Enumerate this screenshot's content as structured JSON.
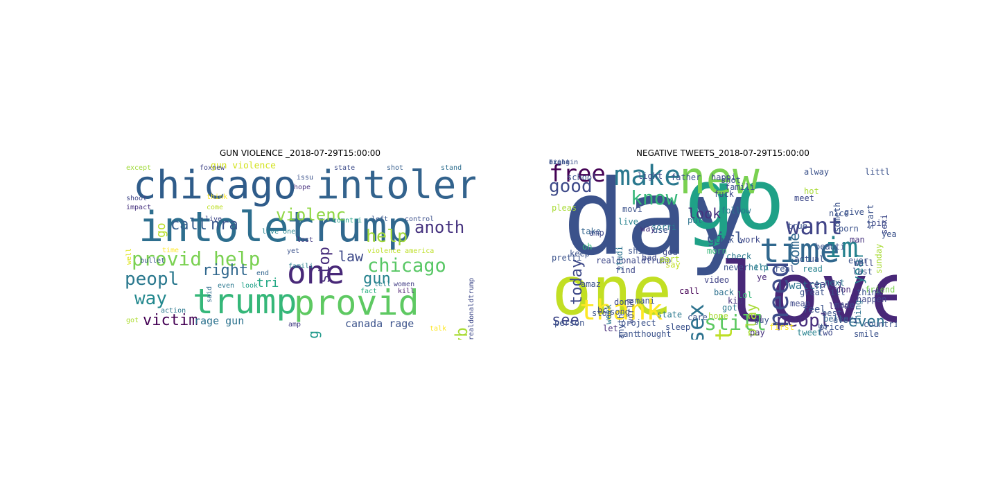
{
  "figure": {
    "left": {
      "title": "GUN VIOLENCE _2018-07-29T15:00:00",
      "words": [
        {
          "text": "chicago",
          "color": "#2f5c8a"
        },
        {
          "text": "intoler",
          "color": "#33638d"
        },
        {
          "text": "intoler",
          "color": "#2d6e8e"
        },
        {
          "text": "trump",
          "color": "#31688e"
        },
        {
          "text": "trump",
          "color": "#35b779"
        },
        {
          "text": "provid",
          "color": "#5ec962"
        },
        {
          "text": "one",
          "color": "#482878"
        },
        {
          "text": "provid help",
          "color": "#7ad151"
        },
        {
          "text": "violenc",
          "color": "#8fd744"
        },
        {
          "text": "help",
          "color": "#a2da37"
        },
        {
          "text": "anoth",
          "color": "#46337f"
        },
        {
          "text": "chicago",
          "color": "#58c765"
        },
        {
          "text": "peopl",
          "color": "#2a788e"
        },
        {
          "text": "way",
          "color": "#23888e"
        },
        {
          "text": "victim",
          "color": "#440154"
        },
        {
          "text": "right",
          "color": "#31688e"
        },
        {
          "text": "call",
          "color": "#355f8d"
        },
        {
          "text": "nra",
          "color": "#39558c"
        },
        {
          "text": "go",
          "color": "#b8de29"
        },
        {
          "text": "law",
          "color": "#3e4a89"
        },
        {
          "text": "gun",
          "color": "#26828e"
        },
        {
          "text": "stop",
          "color": "#472d7b"
        },
        {
          "text": "gang",
          "color": "#1f998a"
        },
        {
          "text": "mayb",
          "color": "#a8db34"
        },
        {
          "text": "canada rage",
          "color": "#3b528b"
        },
        {
          "text": "rage gun",
          "color": "#2c728e"
        },
        {
          "text": "tri",
          "color": "#22a884"
        },
        {
          "text": "gun violence",
          "color": "#d2e21b"
        },
        {
          "text": "except",
          "color": "#9fda3a"
        },
        {
          "text": "foxnew",
          "color": "#404688"
        },
        {
          "text": "state",
          "color": "#3e4c8a"
        },
        {
          "text": "shot",
          "color": "#355e8d"
        },
        {
          "text": "stand",
          "color": "#2e6e8e"
        },
        {
          "text": "issu",
          "color": "#3b528b"
        },
        {
          "text": "hope",
          "color": "#472f7d"
        },
        {
          "text": "shoot",
          "color": "#404688"
        },
        {
          "text": "think",
          "color": "#fde725"
        },
        {
          "text": "impact",
          "color": "#46327e"
        },
        {
          "text": "come",
          "color": "#bddf26"
        },
        {
          "text": "live",
          "color": "#3f4788"
        },
        {
          "text": "love one",
          "color": "#25848e"
        },
        {
          "text": "countri",
          "color": "#20a386"
        },
        {
          "text": "control",
          "color": "#3c508b"
        },
        {
          "text": "left",
          "color": "#38588c"
        },
        {
          "text": "well",
          "color": "#dde318"
        },
        {
          "text": "time",
          "color": "#fde725"
        },
        {
          "text": "bullet",
          "color": "#3a548c"
        },
        {
          "text": "said",
          "color": "#2f6b8e"
        },
        {
          "text": "even",
          "color": "#2a778e"
        },
        {
          "text": "look",
          "color": "#1fa188"
        },
        {
          "text": "end",
          "color": "#32658e"
        },
        {
          "text": "lost",
          "color": "#443a83"
        },
        {
          "text": "yet",
          "color": "#3b528b"
        },
        {
          "text": "famili",
          "color": "#287c8e"
        },
        {
          "text": "violence america",
          "color": "#bddf26"
        },
        {
          "text": "realdonaldtrump",
          "color": "#3e4989"
        },
        {
          "text": "tell",
          "color": "#26828e"
        },
        {
          "text": "women",
          "color": "#433e85"
        },
        {
          "text": "fact",
          "color": "#29af7f"
        },
        {
          "text": "kill",
          "color": "#481b6d"
        },
        {
          "text": "action",
          "color": "#2a788e"
        },
        {
          "text": "amp",
          "color": "#433d84"
        },
        {
          "text": "got",
          "color": "#addc30"
        },
        {
          "text": "talk",
          "color": "#fde725"
        }
      ]
    },
    "right": {
      "title": "NEGATIVE TWEETS_2018-07-29T15:00:00",
      "words": [
        {
          "text": "day",
          "color": "#3b528b"
        },
        {
          "text": "love",
          "color": "#482878"
        },
        {
          "text": "one",
          "color": "#c2df23"
        },
        {
          "text": "go",
          "color": "#1fa187"
        },
        {
          "text": "new",
          "color": "#7ad151"
        },
        {
          "text": "time",
          "color": "#31688e"
        },
        {
          "text": "im",
          "color": "#26828e"
        },
        {
          "text": "make",
          "color": "#2a788e"
        },
        {
          "text": "free",
          "color": "#440154"
        },
        {
          "text": "want",
          "color": "#414487"
        },
        {
          "text": "thank",
          "color": "#fde725"
        },
        {
          "text": "need",
          "color": "#3e4c8a"
        },
        {
          "text": "know",
          "color": "#35b779"
        },
        {
          "text": "good",
          "color": "#3e4a89"
        },
        {
          "text": "sex",
          "color": "#2c728e"
        },
        {
          "text": "dont",
          "color": "#bddf26"
        },
        {
          "text": "still",
          "color": "#5ec962"
        },
        {
          "text": "come",
          "color": "#31688e"
        },
        {
          "text": "look",
          "color": "#46327e"
        },
        {
          "text": "peopl",
          "color": "#472d7b"
        },
        {
          "text": "even",
          "color": "#2d708e"
        },
        {
          "text": "girl",
          "color": "#3b528b"
        },
        {
          "text": "year",
          "color": "#26828e"
        },
        {
          "text": "today",
          "color": "#3e4989"
        },
        {
          "text": "see",
          "color": "#3f4788"
        },
        {
          "text": "play",
          "color": "#a8db34"
        },
        {
          "text": "watch",
          "color": "#2c728e"
        },
        {
          "text": "realli",
          "color": "#404688"
        },
        {
          "text": "alway",
          "color": "#3b528b"
        },
        {
          "text": "nice",
          "color": "#3b528b"
        },
        {
          "text": "follow",
          "color": "#2a788e"
        },
        {
          "text": "realdonaldtrump",
          "color": "#3e4989"
        },
        {
          "text": "live",
          "color": "#26828e"
        },
        {
          "text": "take",
          "color": "#32648e"
        },
        {
          "text": "happen",
          "color": "#3f4788"
        },
        {
          "text": "friend",
          "color": "#7ad151"
        },
        {
          "text": "feel",
          "color": "#3b528b"
        },
        {
          "text": "life",
          "color": "#472c7a"
        },
        {
          "text": "better",
          "color": "#33628d"
        },
        {
          "text": "best",
          "color": "#3a548c"
        },
        {
          "text": "first",
          "color": "#fde725"
        },
        {
          "text": "call",
          "color": "#440154"
        },
        {
          "text": "video",
          "color": "#414487"
        },
        {
          "text": "back",
          "color": "#2d708e"
        },
        {
          "text": "kid",
          "color": "#46327e"
        },
        {
          "text": "guy",
          "color": "#3b528b"
        },
        {
          "text": "lol",
          "color": "#35b779"
        },
        {
          "text": "check",
          "color": "#2a788e"
        },
        {
          "text": "morn",
          "color": "#35b779"
        },
        {
          "text": "put",
          "color": "#2c728e"
        },
        {
          "text": "pleas",
          "color": "#a8db34"
        },
        {
          "text": "keep",
          "color": "#3b528b"
        },
        {
          "text": "week",
          "color": "#2a788e"
        },
        {
          "text": "done",
          "color": "#3e4989"
        },
        {
          "text": "let",
          "color": "#472d7b"
        },
        {
          "text": "stop",
          "color": "#3b528b"
        },
        {
          "text": "pay",
          "color": "#46327e"
        },
        {
          "text": "read",
          "color": "#26828e"
        },
        {
          "text": "great",
          "color": "#3b528b"
        },
        {
          "text": "mean",
          "color": "#3e4989"
        },
        {
          "text": "next",
          "color": "#2c728e"
        },
        {
          "text": "don",
          "color": "#482878"
        },
        {
          "text": "real",
          "color": "#3b528b"
        },
        {
          "text": "porn",
          "color": "#3b528b"
        },
        {
          "text": "god",
          "color": "#3e4989"
        },
        {
          "text": "part",
          "color": "#b5de2b"
        },
        {
          "text": "say",
          "color": "#c2df23"
        },
        {
          "text": "got",
          "color": "#2a788e"
        },
        {
          "text": "hope",
          "color": "#a8db34"
        },
        {
          "text": "use",
          "color": "#3b528b"
        },
        {
          "text": "way",
          "color": "#46327e"
        },
        {
          "text": "oh",
          "color": "#35b779"
        },
        {
          "text": "amp",
          "color": "#3e4989"
        },
        {
          "text": "mani",
          "color": "#3b528b"
        },
        {
          "text": "us",
          "color": "#3b528b"
        },
        {
          "text": "two",
          "color": "#3e4989"
        },
        {
          "text": "actual",
          "color": "#3b528b"
        },
        {
          "text": "studi",
          "color": "#2c728e"
        },
        {
          "text": "sorri",
          "color": "#2a788e"
        },
        {
          "text": "shit",
          "color": "#3b528b"
        },
        {
          "text": "bad",
          "color": "#3e4989"
        },
        {
          "text": "thing",
          "color": "#2c728e"
        },
        {
          "text": "think",
          "color": "#3b528b"
        },
        {
          "text": "man",
          "color": "#46327e"
        },
        {
          "text": "sunday",
          "color": "#a8db34"
        },
        {
          "text": "sexi",
          "color": "#3e4989"
        },
        {
          "text": "tri",
          "color": "#26828e"
        },
        {
          "text": "ye",
          "color": "#482878"
        },
        {
          "text": "never",
          "color": "#3b528b"
        },
        {
          "text": "help",
          "color": "#2a788e"
        },
        {
          "text": "talk",
          "color": "#3b528b"
        },
        {
          "text": "work",
          "color": "#3e4989"
        },
        {
          "text": "care",
          "color": "#3b528b"
        },
        {
          "text": "sleep",
          "color": "#3b528b"
        },
        {
          "text": "tweet",
          "color": "#26828e"
        },
        {
          "text": "last",
          "color": "#3b528b"
        },
        {
          "text": "join",
          "color": "#3e4989"
        },
        {
          "text": "person",
          "color": "#3b528b"
        },
        {
          "text": "song",
          "color": "#3b528b"
        },
        {
          "text": "world",
          "color": "#3e4989"
        },
        {
          "text": "cant",
          "color": "#3b528b"
        },
        {
          "text": "thought",
          "color": "#3b528b"
        },
        {
          "text": "state",
          "color": "#2a788e"
        },
        {
          "text": "happi",
          "color": "#3e4989"
        },
        {
          "text": "famili",
          "color": "#3b528b"
        },
        {
          "text": "father",
          "color": "#3b528b"
        },
        {
          "text": "price",
          "color": "#3b528b"
        },
        {
          "text": "made",
          "color": "#3e4989"
        },
        {
          "text": "everi",
          "color": "#3b528b"
        },
        {
          "text": "ill",
          "color": "#3b528b"
        },
        {
          "text": "find",
          "color": "#3e4989"
        },
        {
          "text": "give",
          "color": "#3b528b"
        },
        {
          "text": "movi",
          "color": "#3b528b"
        },
        {
          "text": "pretti",
          "color": "#3b528b"
        },
        {
          "text": "bc",
          "color": "#3e4989"
        },
        {
          "text": "anyth",
          "color": "#3b528b"
        },
        {
          "text": "project",
          "color": "#3b528b"
        },
        {
          "text": "someth",
          "color": "#3b528b"
        },
        {
          "text": "school",
          "color": "#3b528b"
        },
        {
          "text": "fuck",
          "color": "#3e4989"
        },
        {
          "text": "hot",
          "color": "#a8db34"
        },
        {
          "text": "yeah",
          "color": "#3b528b"
        },
        {
          "text": "start",
          "color": "#3b528b"
        },
        {
          "text": "true",
          "color": "#3b528b"
        },
        {
          "text": "well",
          "color": "#3e4989"
        },
        {
          "text": "amaz",
          "color": "#3b528b"
        },
        {
          "text": "shot",
          "color": "#3b528b"
        },
        {
          "text": "smile",
          "color": "#3b528b"
        },
        {
          "text": "meet",
          "color": "#3e4989"
        },
        {
          "text": "beauti",
          "color": "#3b528b"
        },
        {
          "text": "countri",
          "color": "#3b528b"
        },
        {
          "text": "littl",
          "color": "#3b528b"
        },
        {
          "text": "light",
          "color": "#3e4989"
        },
        {
          "text": "ever",
          "color": "#3b528b"
        },
        {
          "text": "fight",
          "color": "#3b528b"
        },
        {
          "text": "bring",
          "color": "#3b528b"
        },
        {
          "text": "explain",
          "color": "#3b528b"
        }
      ]
    }
  }
}
